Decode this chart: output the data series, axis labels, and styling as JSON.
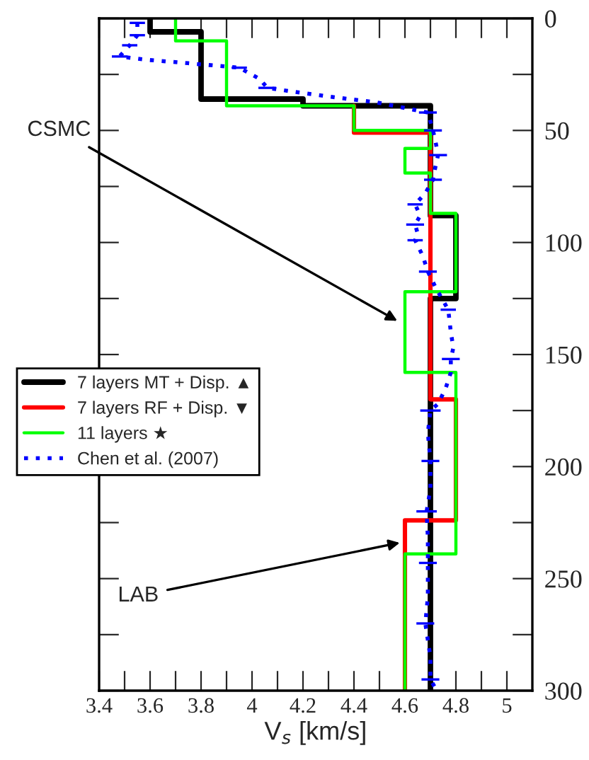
{
  "chart_data": {
    "type": "line",
    "xlabel": "V$_{s}$ [km/s]",
    "xlim": [
      3.4,
      5.1
    ],
    "xticks": [
      3.4,
      {
        "value": 3.5,
        "label": null
      },
      3.6,
      {
        "value": 3.7,
        "label": null
      },
      3.8,
      {
        "value": 3.9,
        "label": null
      },
      4,
      {
        "value": 4.1,
        "label": null
      },
      4.2,
      {
        "value": 4.3,
        "label": null
      },
      4.4,
      {
        "value": 4.5,
        "label": null
      },
      4.6,
      {
        "value": 4.7,
        "label": null
      },
      4.8,
      {
        "value": 4.9,
        "label": null
      },
      5
    ],
    "ylim": [
      300,
      0
    ],
    "yticks": [
      0,
      {
        "value": 25,
        "label": null
      },
      50,
      {
        "value": 75,
        "label": null
      },
      100,
      {
        "value": 125,
        "label": null
      },
      150,
      {
        "value": 175,
        "label": null
      },
      200,
      {
        "value": 225,
        "label": null
      },
      250,
      {
        "value": 275,
        "label": null
      },
      300
    ],
    "grid": false,
    "legend": "left",
    "marker": "none",
    "series": [
      {
        "name": "7 layers MT + Disp. ▲",
        "color": "#000000",
        "line_style": "solid",
        "x": [
          3.6,
          3.6,
          3.8,
          3.8,
          4.2,
          4.2,
          4.7,
          4.7,
          4.8,
          4.8,
          4.7,
          4.7
        ],
        "values": [
          0,
          6,
          6,
          36,
          36,
          39,
          39,
          88,
          88,
          125,
          125,
          300
        ]
      },
      {
        "name": "7 layers RF + Disp. ▼",
        "color": "#ff0000",
        "line_style": "solid",
        "x": [
          4.4,
          4.4,
          4.7,
          4.7,
          4.8,
          4.8,
          4.6,
          4.6
        ],
        "values": [
          39,
          51,
          51,
          170,
          170,
          224,
          224,
          300
        ]
      },
      {
        "name": "11 layers ★",
        "color": "#00ff00",
        "line_style": "solid",
        "x": [
          3.7,
          3.7,
          3.9,
          3.9,
          4.4,
          4.4,
          4.7,
          4.7,
          4.6,
          4.6,
          4.7,
          4.7,
          4.8,
          4.8,
          4.6,
          4.6,
          4.8,
          4.8,
          4.6,
          4.6
        ],
        "values": [
          0,
          10,
          10,
          39,
          39,
          50,
          50,
          58,
          58,
          69,
          69,
          87,
          87,
          122,
          122,
          158,
          158,
          239,
          239,
          300
        ]
      },
      {
        "name": "Chen et al. (2007)",
        "color": "#0000ff",
        "line_style": "dotted",
        "x": [
          3.55,
          3.55,
          3.52,
          3.48,
          3.59,
          3.75,
          3.95,
          4.03,
          4.06,
          4.15,
          4.31,
          4.49,
          4.69,
          4.71,
          4.72,
          4.73,
          4.72,
          4.71,
          4.68,
          4.64,
          4.66,
          4.64,
          4.65,
          4.64,
          4.67,
          4.69,
          4.72,
          4.77,
          4.78,
          4.79,
          4.78,
          4.78,
          4.76,
          4.73,
          4.7,
          4.69,
          4.7,
          4.7,
          4.685,
          4.69,
          4.69,
          4.69,
          4.68,
          4.7,
          4.7,
          4.72
        ],
        "values": [
          2,
          7.5,
          12,
          17,
          18.5,
          20,
          22,
          27,
          31,
          32.5,
          35,
          37.5,
          42,
          50,
          55,
          61,
          66,
          72,
          78,
          83,
          88,
          92,
          96,
          99,
          106,
          113,
          120,
          130,
          140,
          147,
          152,
          158,
          165,
          172,
          175,
          185,
          197.5,
          210,
          220,
          232,
          243,
          258,
          270,
          285,
          295,
          299
        ],
        "xerrors": [
          0.03,
          0.03,
          0.03,
          0.03,
          null,
          null,
          0.03,
          null,
          0.035,
          null,
          null,
          null,
          0.035,
          0.035,
          null,
          0.035,
          null,
          0.035,
          null,
          0.03,
          null,
          0.035,
          null,
          0.03,
          null,
          0.035,
          null,
          0.03,
          null,
          null,
          0.035,
          null,
          null,
          null,
          0.04,
          null,
          0.035,
          null,
          0.04,
          null,
          0.035,
          null,
          0.035,
          null,
          0.035,
          null
        ]
      }
    ],
    "annotations": [
      {
        "text": "CSMC",
        "x": 4.57,
        "y": 135
      },
      {
        "text": "LAB",
        "x": 4.58,
        "y": 234
      }
    ]
  }
}
